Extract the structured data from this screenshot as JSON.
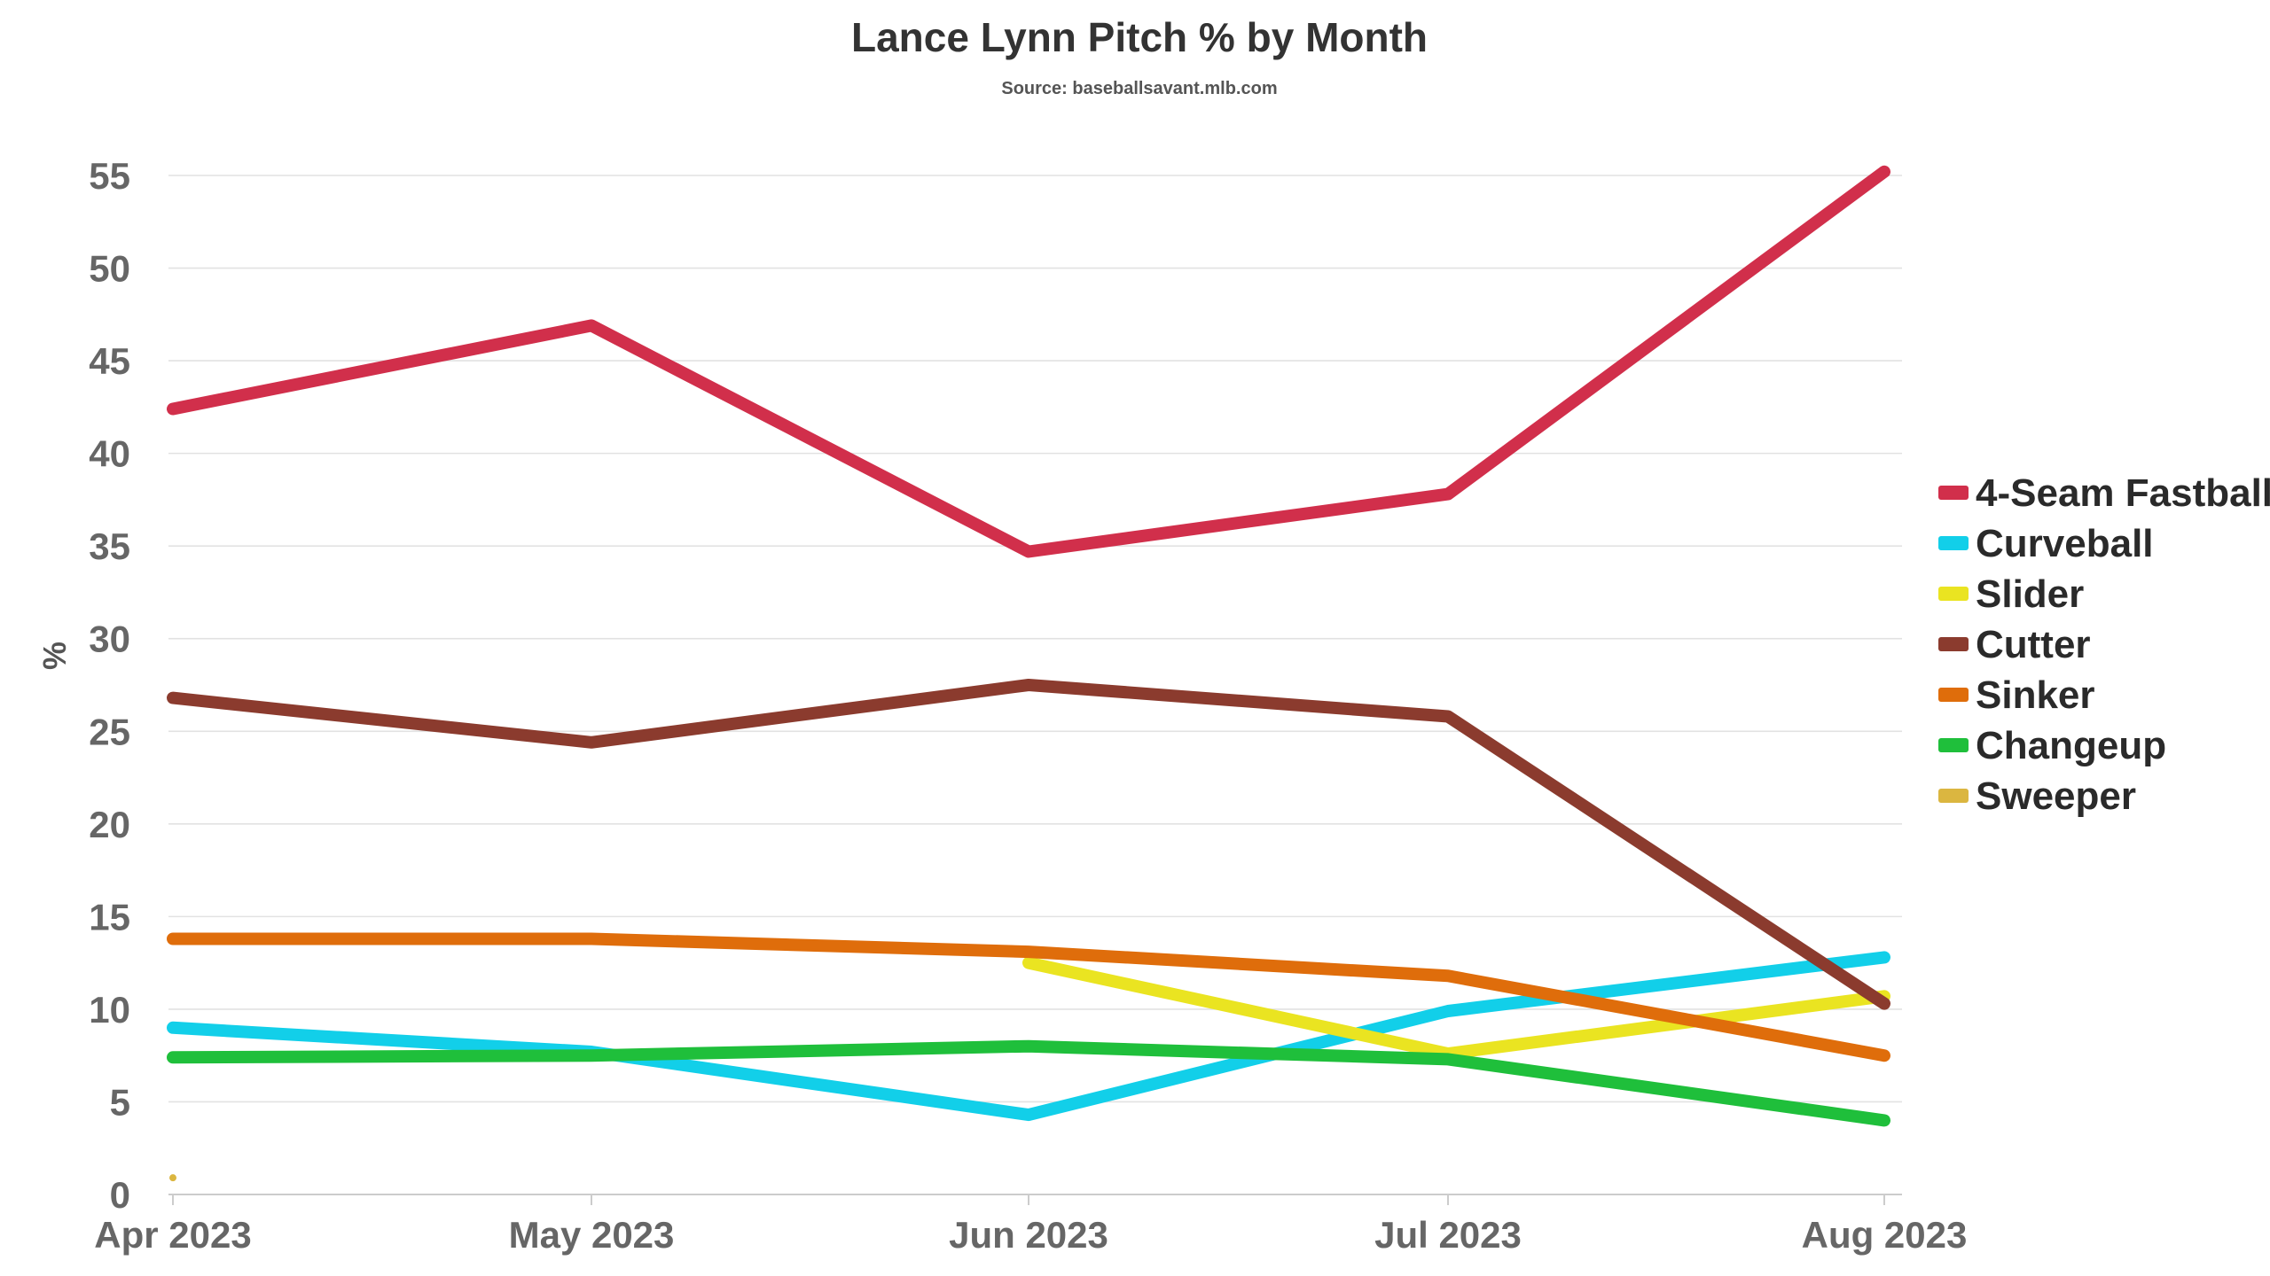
{
  "chart_data": {
    "type": "line",
    "title": "Lance Lynn Pitch % by Month",
    "subtitle": "Source: baseballsavant.mlb.com",
    "xlabel": "",
    "ylabel": "%",
    "categories": [
      "Apr 2023",
      "May 2023",
      "Jun 2023",
      "Jul 2023",
      "Aug 2023"
    ],
    "ylim": [
      0,
      55
    ],
    "yticks": [
      0,
      5,
      10,
      15,
      20,
      25,
      30,
      35,
      40,
      45,
      50,
      55
    ],
    "grid": true,
    "legend_position": "right",
    "series": [
      {
        "name": "4-Seam Fastball",
        "color": "#d12f4b",
        "values": [
          42.4,
          46.9,
          34.7,
          37.8,
          55.2
        ]
      },
      {
        "name": "Curveball",
        "color": "#12cfe9",
        "values": [
          9.0,
          7.7,
          4.3,
          9.9,
          12.8
        ]
      },
      {
        "name": "Slider",
        "color": "#eae421",
        "values": [
          null,
          null,
          12.5,
          7.6,
          10.7
        ]
      },
      {
        "name": "Cutter",
        "color": "#8b3b2e",
        "values": [
          26.8,
          24.4,
          27.5,
          25.8,
          10.3
        ]
      },
      {
        "name": "Sinker",
        "color": "#df6d0b",
        "values": [
          13.8,
          13.8,
          13.1,
          11.8,
          7.5
        ]
      },
      {
        "name": "Changeup",
        "color": "#1fbf3b",
        "values": [
          7.4,
          7.5,
          8.0,
          7.3,
          4.0
        ]
      },
      {
        "name": "Sweeper",
        "color": "#dbb640",
        "values": [
          0.9,
          null,
          null,
          null,
          null
        ]
      }
    ]
  }
}
